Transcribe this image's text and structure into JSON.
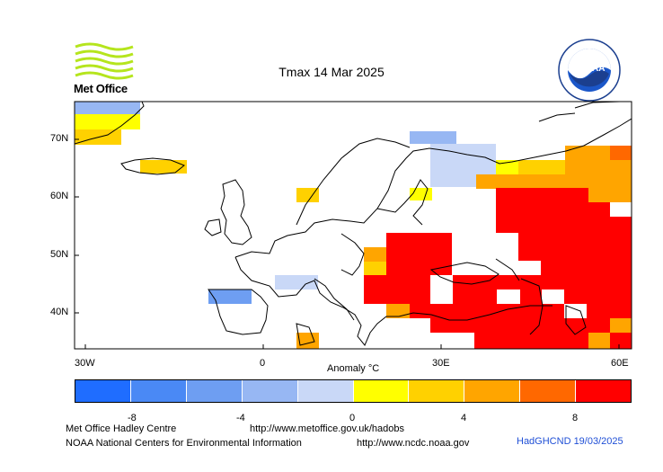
{
  "header": {
    "title": "Tmax 14 Mar 2025",
    "logo_left_text": "Met Office",
    "logo_right_text": "NOAA"
  },
  "map": {
    "lat_ticks": [
      "70N",
      "60N",
      "50N",
      "40N"
    ],
    "lon_ticks": [
      "30W",
      "0",
      "30E",
      "60E"
    ],
    "colorbar_title": "Anomaly °C"
  },
  "legend": {
    "tick_labels": [
      "-8",
      "-4",
      "0",
      "4",
      "8"
    ],
    "colors": [
      "#1f6dff",
      "#4a89f5",
      "#6e9ef2",
      "#97b7f3",
      "#c9d8f7",
      "#ffff00",
      "#ffd100",
      "#ffa500",
      "#ff6800",
      "#ff0000"
    ]
  },
  "footer": {
    "left_line1": "Met Office Hadley Centre",
    "url_line1": "http://www.metoffice.gov.uk/hadobs",
    "left_line2": "NOAA National Centers for Environmental Information",
    "url_line2": "http://www.ncdc.noaa.gov",
    "stamp": "HadGHCND 19/03/2025"
  }
}
